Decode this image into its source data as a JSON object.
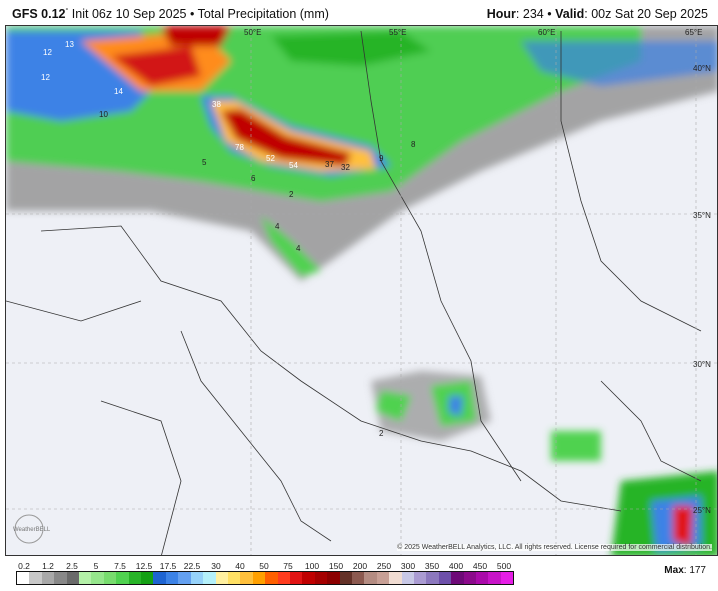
{
  "header": {
    "model": "GFS 0.12",
    "degree": "°",
    "init": "Init 06z 10 Sep 2025",
    "sep": "•",
    "product": "Total Precipitation (mm)",
    "hour_label": "Hour",
    "hour": "234",
    "valid_label": "Valid",
    "valid": "00z Sat 20 Sep 2025"
  },
  "map": {
    "grid_labels": [
      "50°E",
      "55°E",
      "60°E",
      "65°E",
      "40°N",
      "35°N",
      "30°N",
      "25°N"
    ],
    "value_labels": [
      "12",
      "13",
      "12",
      "14",
      "10",
      "38",
      "78",
      "52",
      "54",
      "37",
      "32",
      "9",
      "8",
      "5",
      "6",
      "2",
      "4",
      "4",
      "2"
    ],
    "logo": "WeatherBELL",
    "copyright": "© 2025 WeatherBELL Analytics, LLC. All rights reserved. License required for commercial distribution."
  },
  "legend": {
    "ticks": [
      "0.2",
      "1.2",
      "2.5",
      "5",
      "7.5",
      "12.5",
      "17.5",
      "22.5",
      "30",
      "40",
      "50",
      "75",
      "100",
      "150",
      "200",
      "250",
      "300",
      "350",
      "400",
      "450",
      "500"
    ],
    "colors": [
      "#ffffff",
      "#c8c8c8",
      "#a8a8a8",
      "#888888",
      "#6a6a6a",
      "#b4f0a8",
      "#96e68c",
      "#78dc6e",
      "#50d250",
      "#28b428",
      "#14a014",
      "#1e64d2",
      "#3c82e6",
      "#64a0f0",
      "#96d2fa",
      "#b4f0fa",
      "#fff0a0",
      "#ffe064",
      "#ffc03c",
      "#ffa000",
      "#ff6000",
      "#ff3c1e",
      "#e11414",
      "#c00000",
      "#a50000",
      "#8c0000",
      "#643228",
      "#8c5a50",
      "#b48c82",
      "#c8a096",
      "#f0dcd2",
      "#c8c8e6",
      "#aa9bd2",
      "#8c78be",
      "#6e50aa",
      "#6e0a78",
      "#8c0a8c",
      "#aa0aaa",
      "#c814c8",
      "#e61ee6"
    ],
    "max_label": "Max",
    "max_value": "177"
  }
}
